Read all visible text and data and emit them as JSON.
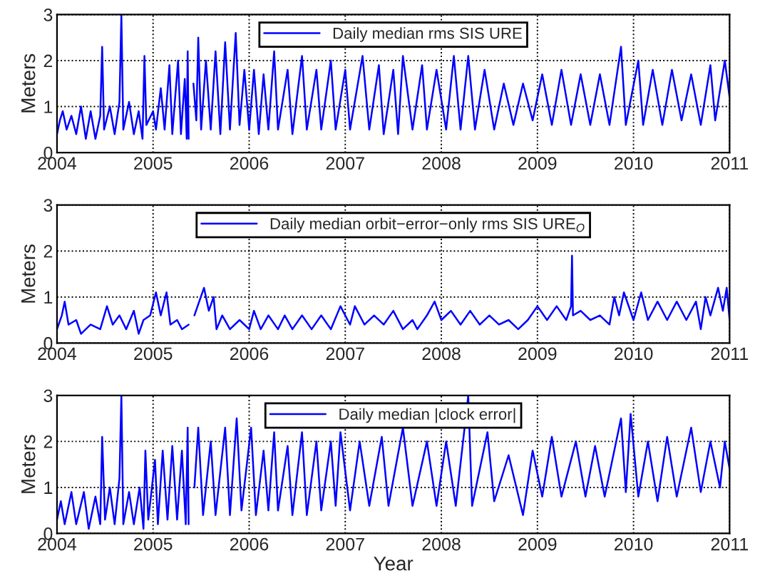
{
  "chart_data": [
    {
      "type": "line",
      "ylabel": "Meters",
      "xlim": [
        2004,
        2011
      ],
      "ylim": [
        0,
        3
      ],
      "xticks": [
        2004,
        2005,
        2006,
        2007,
        2008,
        2009,
        2010,
        2011
      ],
      "yticks": [
        0,
        1,
        2,
        3
      ],
      "grid": true,
      "legend": "top",
      "marker": "none",
      "line_style": "solid",
      "series": [
        {
          "name": "Daily median rms SIS URE",
          "color": "#0000ff",
          "x": [
            2004.0,
            2004.03,
            2004.06,
            2004.1,
            2004.15,
            2004.2,
            2004.25,
            2004.3,
            2004.35,
            2004.4,
            2004.45,
            2004.47,
            2004.49,
            2004.55,
            2004.6,
            2004.65,
            2004.67,
            2004.69,
            2004.75,
            2004.8,
            2004.85,
            2004.89,
            2004.91,
            2004.93,
            2005.0,
            2005.03,
            2005.08,
            2005.12,
            2005.17,
            2005.2,
            2005.26,
            2005.29,
            2005.33,
            2005.35,
            2005.36,
            2005.37,
            2005.4,
            2005.42,
            2005.45,
            2005.47,
            2005.5,
            2005.55,
            2005.6,
            2005.65,
            2005.7,
            2005.75,
            2005.8,
            2005.86,
            2005.9,
            2005.95,
            2006.0,
            2006.05,
            2006.1,
            2006.15,
            2006.2,
            2006.26,
            2006.3,
            2006.4,
            2006.45,
            2006.55,
            2006.6,
            2006.7,
            2006.75,
            2006.85,
            2006.9,
            2007.0,
            2007.05,
            2007.18,
            2007.25,
            2007.35,
            2007.4,
            2007.5,
            2007.55,
            2007.6,
            2007.7,
            2007.8,
            2007.85,
            2007.95,
            2008.05,
            2008.13,
            2008.2,
            2008.28,
            2008.35,
            2008.45,
            2008.55,
            2008.65,
            2008.75,
            2008.85,
            2008.95,
            2009.05,
            2009.15,
            2009.25,
            2009.35,
            2009.45,
            2009.55,
            2009.65,
            2009.75,
            2009.87,
            2009.92,
            2010.05,
            2010.1,
            2010.2,
            2010.3,
            2010.4,
            2010.5,
            2010.6,
            2010.7,
            2010.8,
            2010.85,
            2010.95,
            2011.0
          ],
          "values": [
            0.4,
            0.7,
            0.9,
            0.5,
            0.8,
            0.4,
            1.0,
            0.3,
            0.9,
            0.3,
            0.8,
            2.3,
            0.5,
            1.0,
            0.4,
            1.1,
            3.0,
            0.5,
            1.1,
            0.4,
            0.9,
            0.3,
            2.1,
            0.6,
            0.9,
            0.5,
            1.4,
            0.5,
            1.9,
            0.4,
            2.0,
            0.4,
            1.6,
            0.3,
            2.2,
            0.3,
            null,
            1.5,
            0.7,
            2.5,
            0.5,
            2.0,
            0.5,
            2.2,
            0.4,
            2.4,
            0.5,
            2.6,
            0.6,
            1.8,
            0.5,
            1.8,
            0.4,
            1.7,
            0.5,
            2.2,
            0.5,
            1.8,
            0.4,
            2.1,
            0.5,
            1.8,
            0.5,
            2.0,
            0.5,
            1.8,
            0.5,
            2.1,
            0.5,
            1.9,
            0.4,
            1.8,
            0.4,
            2.1,
            0.5,
            1.9,
            0.5,
            1.8,
            0.5,
            2.1,
            0.5,
            2.1,
            0.5,
            1.8,
            0.5,
            1.5,
            0.6,
            1.5,
            0.7,
            1.7,
            0.6,
            1.8,
            0.6,
            1.7,
            0.6,
            1.7,
            0.6,
            2.3,
            0.6,
            2.0,
            0.6,
            1.8,
            0.6,
            1.8,
            0.7,
            1.7,
            0.6,
            1.9,
            0.7,
            2.0,
            1.2
          ]
        }
      ]
    },
    {
      "type": "line",
      "ylabel": "Meters",
      "xlim": [
        2004,
        2011
      ],
      "ylim": [
        0,
        3
      ],
      "xticks": [
        2004,
        2005,
        2006,
        2007,
        2008,
        2009,
        2010,
        2011
      ],
      "yticks": [
        0,
        1,
        2,
        3
      ],
      "grid": true,
      "legend": "top",
      "marker": "none",
      "line_style": "solid",
      "series": [
        {
          "name": "Daily median orbit−error−only rms SIS URE$_{O}$",
          "color": "#0000ff",
          "x": [
            2004.0,
            2004.05,
            2004.08,
            2004.12,
            2004.2,
            2004.25,
            2004.35,
            2004.45,
            2004.52,
            2004.58,
            2004.65,
            2004.72,
            2004.8,
            2004.85,
            2004.9,
            2004.97,
            2005.03,
            2005.08,
            2005.14,
            2005.18,
            2005.25,
            2005.3,
            2005.37,
            2005.4,
            2005.43,
            2005.48,
            2005.53,
            2005.58,
            2005.63,
            2005.66,
            2005.72,
            2005.8,
            2005.9,
            2006.0,
            2006.05,
            2006.12,
            2006.2,
            2006.3,
            2006.37,
            2006.45,
            2006.55,
            2006.65,
            2006.75,
            2006.85,
            2006.95,
            2007.05,
            2007.1,
            2007.2,
            2007.3,
            2007.4,
            2007.5,
            2007.6,
            2007.7,
            2007.75,
            2007.85,
            2007.93,
            2008.0,
            2008.1,
            2008.2,
            2008.3,
            2008.4,
            2008.5,
            2008.6,
            2008.7,
            2008.8,
            2008.9,
            2009.0,
            2009.1,
            2009.2,
            2009.3,
            2009.35,
            2009.36,
            2009.37,
            2009.45,
            2009.55,
            2009.65,
            2009.75,
            2009.8,
            2009.85,
            2009.9,
            2010.0,
            2010.08,
            2010.15,
            2010.25,
            2010.35,
            2010.45,
            2010.55,
            2010.65,
            2010.7,
            2010.75,
            2010.8,
            2010.88,
            2010.93,
            2010.97,
            2011.0
          ],
          "values": [
            0.3,
            0.6,
            0.9,
            0.4,
            0.5,
            0.2,
            0.4,
            0.3,
            0.8,
            0.4,
            0.6,
            0.3,
            0.7,
            0.2,
            0.5,
            0.6,
            1.1,
            0.6,
            1.1,
            0.4,
            0.5,
            0.3,
            0.4,
            null,
            0.6,
            0.9,
            1.2,
            0.7,
            1.0,
            0.3,
            0.6,
            0.3,
            0.5,
            0.3,
            0.7,
            0.3,
            0.6,
            0.3,
            0.6,
            0.3,
            0.6,
            0.3,
            0.6,
            0.3,
            0.8,
            0.4,
            0.8,
            0.4,
            0.6,
            0.4,
            0.7,
            0.3,
            0.5,
            0.3,
            0.6,
            0.9,
            0.5,
            0.7,
            0.4,
            0.7,
            0.4,
            0.6,
            0.4,
            0.5,
            0.3,
            0.5,
            0.8,
            0.5,
            0.8,
            0.5,
            0.8,
            1.9,
            0.6,
            0.7,
            0.5,
            0.6,
            0.4,
            1.0,
            0.6,
            1.1,
            0.5,
            1.1,
            0.5,
            0.9,
            0.5,
            0.9,
            0.5,
            0.9,
            0.3,
            1.0,
            0.6,
            1.2,
            0.7,
            1.2,
            0.5
          ]
        }
      ]
    },
    {
      "type": "line",
      "xlabel": "Year",
      "ylabel": "Meters",
      "xlim": [
        2004,
        2011
      ],
      "ylim": [
        0,
        3
      ],
      "xticks": [
        2004,
        2005,
        2006,
        2007,
        2008,
        2009,
        2010,
        2011
      ],
      "yticks": [
        0,
        1,
        2,
        3
      ],
      "grid": true,
      "legend": "top",
      "marker": "none",
      "line_style": "solid",
      "series": [
        {
          "name": "Daily median |clock error|",
          "color": "#0000ff",
          "x": [
            2004.0,
            2004.04,
            2004.08,
            2004.15,
            2004.2,
            2004.28,
            2004.33,
            2004.4,
            2004.45,
            2004.47,
            2004.5,
            2004.55,
            2004.6,
            2004.65,
            2004.67,
            2004.69,
            2004.75,
            2004.8,
            2004.86,
            2004.9,
            2004.92,
            2004.95,
            2005.02,
            2005.05,
            2005.1,
            2005.15,
            2005.2,
            2005.25,
            2005.3,
            2005.34,
            2005.36,
            2005.37,
            2005.4,
            2005.43,
            2005.47,
            2005.52,
            2005.6,
            2005.65,
            2005.75,
            2005.8,
            2005.87,
            2005.92,
            2006.02,
            2006.07,
            2006.15,
            2006.2,
            2006.26,
            2006.3,
            2006.4,
            2006.45,
            2006.55,
            2006.6,
            2006.7,
            2006.75,
            2006.85,
            2006.9,
            2006.95,
            2007.05,
            2007.15,
            2007.25,
            2007.38,
            2007.45,
            2007.6,
            2007.7,
            2007.85,
            2007.95,
            2008.05,
            2008.15,
            2008.28,
            2008.32,
            2008.48,
            2008.55,
            2008.7,
            2008.85,
            2008.95,
            2009.05,
            2009.15,
            2009.25,
            2009.4,
            2009.5,
            2009.6,
            2009.7,
            2009.87,
            2009.92,
            2009.97,
            2010.05,
            2010.15,
            2010.25,
            2010.35,
            2010.45,
            2010.6,
            2010.7,
            2010.8,
            2010.9,
            2010.95,
            2011.0
          ],
          "values": [
            0.3,
            0.7,
            0.2,
            0.9,
            0.2,
            0.9,
            0.1,
            0.8,
            0.2,
            2.1,
            0.3,
            1.0,
            0.2,
            1.2,
            3.0,
            0.2,
            0.9,
            0.2,
            1.0,
            0.1,
            1.8,
            0.3,
            1.6,
            0.2,
            1.8,
            0.3,
            1.9,
            0.3,
            1.8,
            0.2,
            2.3,
            0.2,
            null,
            1.0,
            2.3,
            0.4,
            2.0,
            0.4,
            2.3,
            0.4,
            2.5,
            0.5,
            2.3,
            0.4,
            1.8,
            0.5,
            2.2,
            0.5,
            1.9,
            0.4,
            2.2,
            0.4,
            2.0,
            0.5,
            2.0,
            0.6,
            2.2,
            0.5,
            2.0,
            0.6,
            2.1,
            0.6,
            2.3,
            0.6,
            2.0,
            0.6,
            2.0,
            0.6,
            3.0,
            0.6,
            2.2,
            0.7,
            1.7,
            0.4,
            1.8,
            0.8,
            2.1,
            0.8,
            2.0,
            0.8,
            1.9,
            0.8,
            2.5,
            0.9,
            2.6,
            0.8,
            2.0,
            0.7,
            2.1,
            0.8,
            2.3,
            0.9,
            2.0,
            1.0,
            2.0,
            1.4
          ]
        }
      ]
    }
  ]
}
